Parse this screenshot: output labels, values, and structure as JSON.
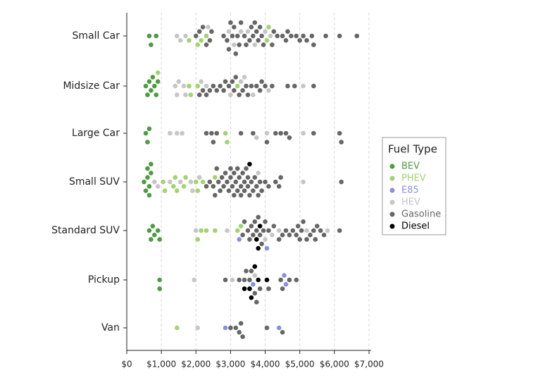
{
  "chart_data": {
    "type": "swarm",
    "categories": [
      "Small Car",
      "Midsize Car",
      "Large Car",
      "Small SUV",
      "Standard SUV",
      "Pickup",
      "Van"
    ],
    "xlim": [
      0,
      7000
    ],
    "xticks": [
      {
        "value": 0,
        "label": "$0"
      },
      {
        "value": 1000,
        "label": "$1,000"
      },
      {
        "value": 2000,
        "label": "$2,000"
      },
      {
        "value": 3000,
        "label": "$3,000"
      },
      {
        "value": 4000,
        "label": "$4,000"
      },
      {
        "value": 5000,
        "label": "$5,000"
      },
      {
        "value": 6000,
        "label": "$6,000"
      },
      {
        "value": 7000,
        "label": "$7,000"
      }
    ],
    "grid": true,
    "legend_title": "Fuel Type",
    "legend": "right",
    "series": [
      {
        "name": "BEV",
        "color": "#4f9a44",
        "values": [
          [
            650,
            700,
            850
          ],
          [
            550,
            600,
            650,
            700,
            750,
            800,
            850,
            900
          ],
          [
            550,
            600,
            650
          ],
          [
            500,
            550,
            600,
            600,
            650,
            650,
            700,
            700
          ],
          [
            650,
            700,
            750,
            800,
            900,
            950
          ],
          [
            950,
            950
          ],
          []
        ]
      },
      {
        "name": "PHEV",
        "color": "#a3d273",
        "values": [
          [
            1800,
            2050,
            2150,
            2300,
            4050,
            4100
          ],
          [
            900,
            1800,
            1850,
            2050,
            3200
          ],
          [
            2850,
            2900
          ],
          [
            1050,
            1100,
            1350,
            1400,
            1450,
            1650,
            1700,
            2000,
            2050,
            2200,
            2550
          ],
          [
            2050,
            2150,
            2300,
            2550,
            3200,
            3300
          ],
          [],
          [
            1450
          ]
        ]
      },
      {
        "name": "E85",
        "color": "#8b8fe0",
        "values": [
          [],
          [],
          [],
          [],
          [
            3250,
            4050
          ],
          [
            3650,
            4550,
            4600
          ],
          [
            2850,
            4400
          ]
        ]
      },
      {
        "name": "HEV",
        "color": "#c6c6c6",
        "values": [
          [
            1450,
            1550,
            1700,
            2350,
            2950,
            3100,
            3300,
            3500,
            3700,
            4000,
            4150
          ],
          [
            1400,
            1450,
            1500,
            1650,
            1700,
            2150,
            2300,
            3000,
            3300,
            3400,
            3650,
            4100,
            5100
          ],
          [
            1250,
            1450,
            1600,
            3750,
            4050,
            5100
          ],
          [
            800,
            900,
            1250,
            1550,
            1850,
            1900,
            2100,
            3800,
            5100
          ],
          [
            2000,
            2900,
            4000,
            4200,
            4400,
            5200,
            5800
          ],
          [
            1950,
            3050,
            3700
          ],
          [
            2050
          ]
        ]
      },
      {
        "name": "Gasoline",
        "color": "#666666",
        "values": [
          [
            2000,
            2100,
            2200,
            2300,
            2400,
            2450,
            2800,
            2900,
            2950,
            3000,
            3050,
            3100,
            3150,
            3200,
            3250,
            3300,
            3400,
            3450,
            3550,
            3600,
            3650,
            3700,
            3750,
            3800,
            3850,
            3900,
            3950,
            4200,
            4250,
            4350,
            4500,
            4600,
            4650,
            4750,
            4900,
            5000,
            5100,
            5200,
            5350,
            5400,
            5750,
            6150,
            6650
          ],
          [
            2100,
            2200,
            2300,
            2400,
            2500,
            2600,
            2700,
            2800,
            2850,
            2950,
            3050,
            3100,
            3150,
            3250,
            3350,
            3450,
            3500,
            3600,
            3750,
            3850,
            3900,
            4000,
            4200,
            4650,
            4850,
            5400
          ],
          [
            2300,
            2450,
            2500,
            2600,
            3300,
            3650,
            4050,
            4300,
            4450,
            4600,
            4700,
            5400,
            6150,
            6200
          ],
          [
            2300,
            2400,
            2500,
            2550,
            2600,
            2650,
            2700,
            2750,
            2800,
            2850,
            2900,
            2950,
            3000,
            3000,
            3050,
            3100,
            3100,
            3150,
            3200,
            3200,
            3250,
            3300,
            3300,
            3350,
            3400,
            3400,
            3450,
            3500,
            3500,
            3550,
            3600,
            3650,
            3700,
            3750,
            3800,
            3850,
            3900,
            4000,
            4100,
            4300,
            4400,
            4450,
            6200
          ],
          [
            3350,
            3400,
            3500,
            3550,
            3600,
            3650,
            3700,
            3750,
            3800,
            3850,
            3900,
            3950,
            4000,
            4100,
            4250,
            4400,
            4500,
            4600,
            4700,
            4800,
            4900,
            4950,
            5000,
            5050,
            5100,
            5200,
            5300,
            5400,
            5450,
            5500,
            5600,
            5700,
            6150
          ],
          [
            2850,
            3250,
            3400,
            3450,
            3550,
            3600,
            3700,
            3750,
            3850,
            4100,
            4450,
            4500,
            4700,
            4900
          ],
          [
            3000,
            3150,
            3250,
            3300,
            3350,
            4050,
            4500
          ]
        ]
      },
      {
        "name": "Diesel",
        "color": "#000000",
        "values": [
          [],
          [],
          [],
          [
            3550
          ],
          [
            3750,
            3800,
            3850
          ],
          [
            3400,
            3550,
            3600,
            3700,
            3800,
            4050
          ],
          []
        ]
      }
    ]
  }
}
